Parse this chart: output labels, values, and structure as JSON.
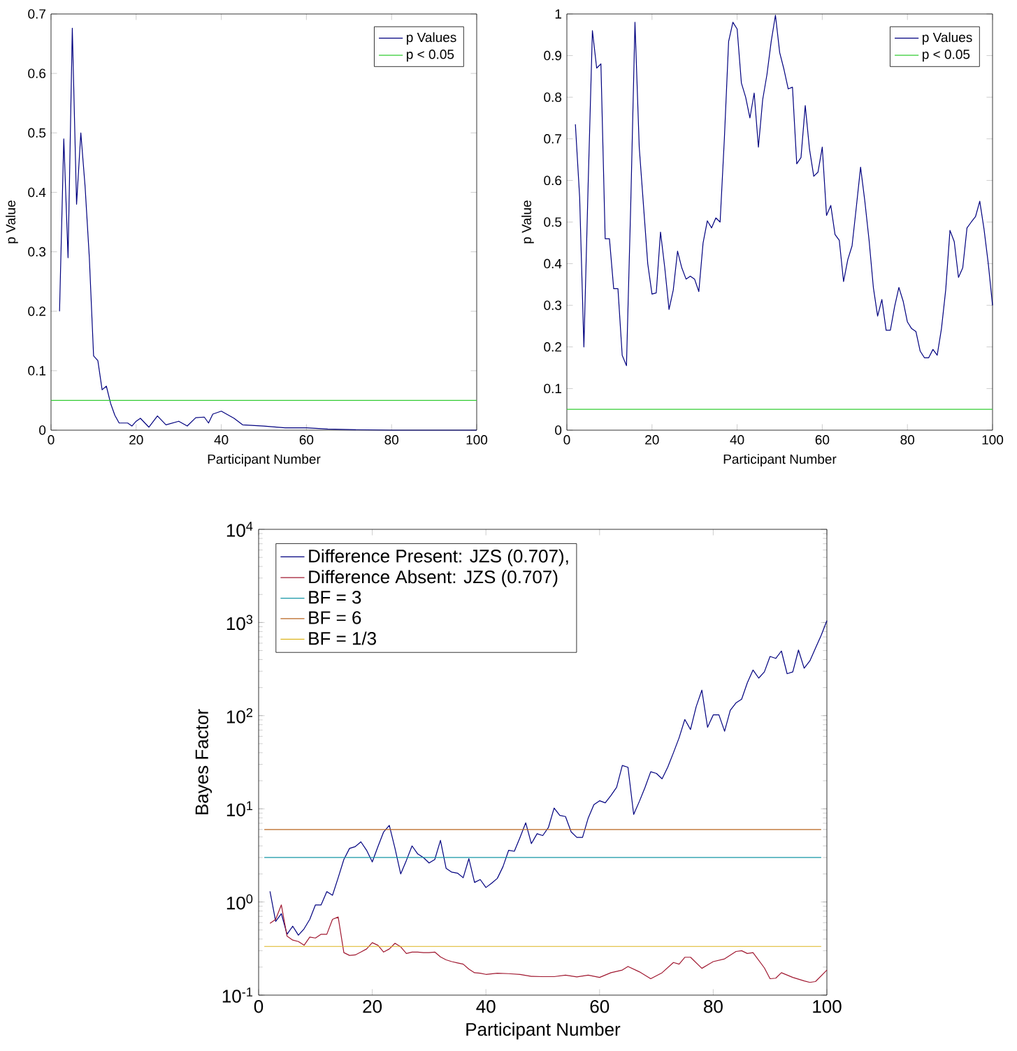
{
  "chart_data": [
    {
      "type": "line",
      "xlabel": "Participant Number",
      "ylabel": "p Value",
      "xlim": [
        0,
        100
      ],
      "ylim": [
        0,
        0.7
      ],
      "xticks": [
        0,
        20,
        40,
        60,
        80,
        100
      ],
      "yticks": [
        0,
        0.1,
        0.2,
        0.3,
        0.4,
        0.5,
        0.6,
        0.7
      ],
      "legend": "top right",
      "series": [
        {
          "name": "p Values",
          "color": "#00007f",
          "x": [
            2,
            3,
            4,
            5,
            6,
            7,
            8,
            9,
            10,
            11,
            12,
            13,
            14,
            15,
            16,
            17,
            18,
            19,
            20,
            21,
            23,
            25,
            27,
            30,
            32,
            34,
            36,
            37,
            38,
            40,
            43,
            45,
            50,
            55,
            60,
            65,
            70,
            80,
            90,
            100
          ],
          "values": [
            0.2,
            0.49,
            0.29,
            0.676,
            0.38,
            0.5,
            0.41,
            0.29,
            0.125,
            0.117,
            0.068,
            0.074,
            0.045,
            0.025,
            0.012,
            0.012,
            0.012,
            0.007,
            0.015,
            0.02,
            0.005,
            0.024,
            0.009,
            0.015,
            0.007,
            0.021,
            0.022,
            0.012,
            0.027,
            0.032,
            0.02,
            0.009,
            0.007,
            0.004,
            0.004,
            0.002,
            0.001,
            0,
            0,
            0
          ]
        }
      ],
      "ref_lines": [
        {
          "axis": "y",
          "value": 0.05,
          "label": "p < 0.05",
          "color": "#33cc33"
        }
      ]
    },
    {
      "type": "line",
      "xlabel": "Participant Number",
      "ylabel": "p Value",
      "xlim": [
        0,
        100
      ],
      "ylim": [
        0,
        1
      ],
      "xticks": [
        0,
        20,
        40,
        60,
        80,
        100
      ],
      "yticks": [
        0,
        0.1,
        0.2,
        0.3,
        0.4,
        0.5,
        0.6,
        0.7,
        0.8,
        0.9,
        1
      ],
      "legend": "top right",
      "series": [
        {
          "name": "p Values",
          "color": "#00007f",
          "x": [
            2,
            3,
            4,
            5,
            6,
            7,
            8,
            9,
            10,
            11,
            12,
            13,
            14,
            15,
            16,
            17,
            18,
            19,
            20,
            21,
            22,
            23,
            24,
            25,
            26,
            27,
            28,
            29,
            30,
            31,
            32,
            33,
            34,
            35,
            36,
            37,
            38,
            39,
            40,
            41,
            42,
            43,
            44,
            45,
            46,
            47,
            48,
            49,
            50,
            51,
            52,
            53,
            54,
            55,
            56,
            57,
            58,
            59,
            60,
            61,
            62,
            63,
            64,
            65,
            66,
            67,
            68,
            69,
            70,
            71,
            72,
            73,
            74,
            75,
            76,
            77,
            78,
            79,
            80,
            81,
            82,
            83,
            84,
            85,
            86,
            87,
            88,
            89,
            90,
            91,
            92,
            93,
            94,
            95,
            96,
            97,
            98,
            99,
            100
          ],
          "values": [
            0.735,
            0.56,
            0.2,
            0.59,
            0.96,
            0.87,
            0.88,
            0.46,
            0.46,
            0.34,
            0.34,
            0.18,
            0.155,
            0.54,
            0.98,
            0.68,
            0.54,
            0.4,
            0.327,
            0.33,
            0.476,
            0.39,
            0.29,
            0.337,
            0.43,
            0.39,
            0.363,
            0.37,
            0.363,
            0.333,
            0.45,
            0.503,
            0.486,
            0.51,
            0.5,
            0.7,
            0.934,
            0.98,
            0.964,
            0.834,
            0.8,
            0.75,
            0.81,
            0.68,
            0.794,
            0.854,
            0.934,
            0.997,
            0.907,
            0.867,
            0.82,
            0.824,
            0.64,
            0.655,
            0.78,
            0.675,
            0.61,
            0.62,
            0.68,
            0.516,
            0.54,
            0.47,
            0.456,
            0.357,
            0.41,
            0.443,
            0.536,
            0.632,
            0.55,
            0.456,
            0.343,
            0.274,
            0.314,
            0.24,
            0.24,
            0.297,
            0.343,
            0.31,
            0.26,
            0.244,
            0.237,
            0.19,
            0.174,
            0.174,
            0.194,
            0.18,
            0.244,
            0.337,
            0.48,
            0.453,
            0.367,
            0.39,
            0.486,
            0.5,
            0.513,
            0.55,
            0.483,
            0.4,
            0.3
          ]
        }
      ],
      "ref_lines": [
        {
          "axis": "y",
          "value": 0.05,
          "label": "p < 0.05",
          "color": "#33cc33"
        }
      ]
    },
    {
      "type": "line",
      "xlabel": "Participant Number",
      "ylabel": "Bayes Factor",
      "log": "y",
      "xlim": [
        0,
        100
      ],
      "ylim": [
        0.1,
        10000
      ],
      "xticks": [
        0,
        20,
        40,
        60,
        80,
        100
      ],
      "yticks": [
        {
          "value": 0.1,
          "label": "10$^{-1}$"
        },
        {
          "value": 1,
          "label": "10$^{0}$"
        },
        {
          "value": 10,
          "label": "10$^{1}$"
        },
        {
          "value": 100,
          "label": "10$^{2}$"
        },
        {
          "value": 1000,
          "label": "10$^{3}$"
        },
        {
          "value": 10000,
          "label": "10$^{4}$"
        }
      ],
      "legend": "top left",
      "series": [
        {
          "name": "Difference Present: JZS (0.707),",
          "color": "#00007f",
          "x": [
            2,
            3,
            4,
            5,
            6,
            7,
            8,
            9,
            10,
            11,
            12,
            13,
            14,
            15,
            16,
            17,
            18,
            19,
            20,
            21,
            22,
            23,
            24,
            25,
            26,
            27,
            28,
            29,
            30,
            31,
            32,
            33,
            34,
            35,
            36,
            37,
            38,
            39,
            40,
            41,
            42,
            43,
            44,
            45,
            46,
            47,
            48,
            49,
            50,
            51,
            52,
            53,
            54,
            55,
            56,
            57,
            58,
            59,
            60,
            61,
            62,
            63,
            64,
            65,
            66,
            67,
            68,
            69,
            70,
            71,
            72,
            73,
            74,
            75,
            76,
            77,
            78,
            79,
            80,
            81,
            82,
            83,
            84,
            85,
            86,
            87,
            88,
            89,
            90,
            91,
            92,
            93,
            94,
            95,
            96,
            97,
            98,
            99,
            100
          ],
          "values": [
            1.3,
            0.62,
            0.75,
            0.45,
            0.55,
            0.44,
            0.515,
            0.65,
            0.93,
            0.93,
            1.29,
            1.18,
            1.82,
            2.86,
            3.76,
            3.93,
            4.42,
            3.59,
            2.69,
            3.93,
            5.65,
            6.64,
            3.76,
            2.0,
            2.79,
            4.0,
            3.28,
            3.0,
            2.62,
            2.86,
            4.58,
            2.29,
            2.09,
            2.04,
            1.82,
            2.92,
            1.62,
            1.74,
            1.43,
            1.59,
            1.79,
            2.39,
            3.59,
            3.5,
            4.93,
            7.08,
            4.23,
            5.4,
            5.16,
            6.3,
            10.2,
            8.5,
            8.26,
            5.65,
            4.93,
            4.93,
            7.96,
            11.1,
            12.2,
            11.6,
            13.9,
            17,
            29.2,
            27.9,
            8.7,
            12,
            17,
            25,
            24,
            21,
            28,
            40,
            58,
            91,
            71,
            125,
            188,
            75,
            102,
            102,
            68,
            114,
            137,
            150,
            225,
            309,
            253,
            295,
            432,
            412,
            494,
            282,
            295,
            507,
            323,
            387,
            531,
            728,
            1047
          ]
        },
        {
          "name": "Difference Absent: JZS (0.707)",
          "color": "#a01830",
          "x": [
            2,
            3,
            4,
            5,
            6,
            7,
            8,
            9,
            10,
            11,
            12,
            13,
            14,
            15,
            16,
            17,
            18,
            19,
            20,
            21,
            22,
            23,
            24,
            25,
            26,
            27,
            28,
            29,
            30,
            31,
            32,
            33,
            34,
            35,
            36,
            37,
            38,
            39,
            40,
            42,
            44,
            46,
            48,
            50,
            52,
            54,
            56,
            58,
            60,
            62,
            64,
            65,
            67,
            69,
            71,
            73,
            74,
            75,
            76,
            78,
            80,
            82,
            84,
            85,
            86,
            87,
            89,
            90,
            91,
            92,
            94,
            96,
            97,
            98,
            100
          ],
          "values": [
            0.59,
            0.65,
            0.93,
            0.43,
            0.39,
            0.376,
            0.343,
            0.42,
            0.41,
            0.45,
            0.45,
            0.65,
            0.69,
            0.286,
            0.267,
            0.27,
            0.29,
            0.313,
            0.366,
            0.343,
            0.29,
            0.313,
            0.36,
            0.33,
            0.28,
            0.29,
            0.29,
            0.286,
            0.286,
            0.29,
            0.257,
            0.239,
            0.229,
            0.222,
            0.215,
            0.19,
            0.174,
            0.172,
            0.167,
            0.172,
            0.17,
            0.167,
            0.159,
            0.158,
            0.158,
            0.164,
            0.157,
            0.164,
            0.155,
            0.174,
            0.186,
            0.203,
            0.178,
            0.15,
            0.174,
            0.224,
            0.215,
            0.255,
            0.255,
            0.194,
            0.229,
            0.245,
            0.294,
            0.3,
            0.28,
            0.286,
            0.196,
            0.15,
            0.152,
            0.174,
            0.155,
            0.142,
            0.137,
            0.14,
            0.186
          ]
        },
        {
          "name": "BF = 3",
          "color": "#1596a6",
          "x": [
            1,
            99
          ],
          "values": [
            3,
            3
          ]
        },
        {
          "name": "BF = 6",
          "color": "#b8651e",
          "x": [
            1,
            99
          ],
          "values": [
            6,
            6
          ]
        },
        {
          "name": "BF = 1/3",
          "color": "#dcb41e",
          "x": [
            1,
            99
          ],
          "values": [
            0.3333,
            0.3333
          ]
        }
      ]
    }
  ]
}
